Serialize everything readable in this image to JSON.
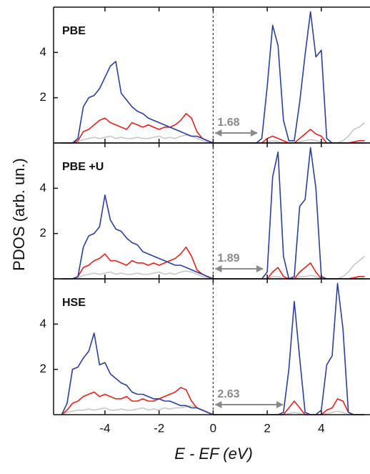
{
  "chart_data": [
    {
      "type": "line",
      "label": "PBE",
      "gap": 1.68,
      "ylabel": "PDOS (arb. un.)",
      "xlim": [
        -5.9,
        5.8
      ],
      "ylim": [
        0,
        6
      ],
      "yticks": [
        2,
        4
      ],
      "xticks": [
        -4,
        -2,
        0,
        2,
        4
      ],
      "x": [
        -5.6,
        -5.4,
        -5.2,
        -5.0,
        -4.8,
        -4.6,
        -4.4,
        -4.2,
        -4.0,
        -3.8,
        -3.6,
        -3.4,
        -3.2,
        -3.0,
        -2.8,
        -2.6,
        -2.4,
        -2.2,
        -2.0,
        -1.8,
        -1.6,
        -1.4,
        -1.2,
        -1.0,
        -0.8,
        -0.6,
        -0.4,
        -0.2,
        0,
        0.2,
        0.4,
        0.6,
        0.8,
        1.0,
        1.2,
        1.4,
        1.6,
        1.8,
        2.0,
        2.2,
        2.4,
        2.6,
        2.8,
        3.0,
        3.2,
        3.4,
        3.6,
        3.8,
        4.0,
        4.2,
        4.4,
        4.6,
        4.8,
        5.0,
        5.2,
        5.4,
        5.6
      ],
      "series": [
        {
          "color": "#c8c8c8",
          "values": [
            0,
            0,
            0,
            0.05,
            0.15,
            0.2,
            0.25,
            0.2,
            0.25,
            0.3,
            0.2,
            0.25,
            0.2,
            0.2,
            0.25,
            0.2,
            0.2,
            0.25,
            0.3,
            0.2,
            0.25,
            0.2,
            0.3,
            0.35,
            0.3,
            0.2,
            0.1,
            0.05,
            0,
            0,
            0,
            0,
            0,
            0,
            0,
            0,
            0,
            0,
            0.05,
            0.1,
            0.05,
            0,
            0,
            0,
            0.05,
            0.1,
            0.15,
            0.1,
            0.05,
            0,
            0,
            0,
            0.1,
            0.3,
            0.6,
            0.7,
            0.9
          ]
        },
        {
          "color": "#e3241e",
          "values": [
            0,
            0,
            0,
            0.1,
            0.5,
            0.6,
            0.8,
            1.0,
            1.1,
            0.9,
            0.8,
            0.7,
            0.6,
            0.9,
            0.8,
            0.7,
            0.8,
            0.7,
            0.6,
            0.7,
            0.7,
            0.8,
            1.0,
            1.3,
            1.1,
            0.5,
            0.2,
            0.1,
            0,
            0,
            0,
            0,
            0,
            0,
            0,
            0,
            0,
            0,
            0.2,
            0.3,
            0.2,
            0.1,
            0,
            0,
            0.2,
            0.4,
            0.6,
            0.4,
            0.3,
            0,
            0,
            0,
            0,
            0,
            0.05,
            0.1,
            0.1
          ]
        },
        {
          "color": "#2b3f9c",
          "values": [
            0,
            0,
            0,
            0.2,
            1.6,
            2.0,
            2.1,
            2.4,
            2.9,
            3.4,
            3.6,
            2.2,
            1.9,
            1.6,
            1.4,
            1.3,
            1.1,
            1.0,
            0.9,
            0.8,
            0.7,
            0.6,
            0.5,
            0.4,
            0.3,
            0.3,
            0.2,
            0.1,
            0,
            0,
            0,
            0,
            0,
            0,
            0,
            0,
            0,
            0.2,
            2.5,
            5.2,
            4.3,
            1.0,
            0.1,
            0.1,
            1.8,
            3.9,
            5.8,
            3.8,
            4.1,
            0.2,
            0,
            0,
            0,
            0,
            0,
            0,
            0
          ]
        }
      ]
    },
    {
      "type": "line",
      "label": "PBE +U",
      "gap": 1.89,
      "xlim": [
        -5.9,
        5.8
      ],
      "ylim": [
        0,
        6
      ],
      "yticks": [
        2,
        4
      ],
      "xticks": [
        -4,
        -2,
        0,
        2,
        4
      ],
      "x": [
        -5.6,
        -5.4,
        -5.2,
        -5.0,
        -4.8,
        -4.6,
        -4.4,
        -4.2,
        -4.0,
        -3.8,
        -3.6,
        -3.4,
        -3.2,
        -3.0,
        -2.8,
        -2.6,
        -2.4,
        -2.2,
        -2.0,
        -1.8,
        -1.6,
        -1.4,
        -1.2,
        -1.0,
        -0.8,
        -0.6,
        -0.4,
        -0.2,
        0,
        0.2,
        0.4,
        0.6,
        0.8,
        1.0,
        1.2,
        1.4,
        1.6,
        1.8,
        2.0,
        2.2,
        2.4,
        2.6,
        2.8,
        3.0,
        3.2,
        3.4,
        3.6,
        3.8,
        4.0,
        4.2,
        4.4,
        4.6,
        4.8,
        5.0,
        5.2,
        5.4,
        5.6
      ],
      "series": [
        {
          "color": "#c8c8c8",
          "values": [
            0,
            0,
            0,
            0.05,
            0.15,
            0.2,
            0.25,
            0.2,
            0.25,
            0.3,
            0.2,
            0.25,
            0.2,
            0.2,
            0.25,
            0.2,
            0.2,
            0.25,
            0.3,
            0.2,
            0.25,
            0.2,
            0.3,
            0.35,
            0.3,
            0.2,
            0.1,
            0.05,
            0,
            0,
            0,
            0,
            0,
            0,
            0,
            0,
            0,
            0,
            0,
            0.1,
            0.1,
            0,
            0,
            0,
            0.1,
            0.1,
            0.15,
            0.1,
            0,
            0,
            0,
            0,
            0.1,
            0.3,
            0.6,
            0.8,
            1.0
          ]
        },
        {
          "color": "#e3241e",
          "values": [
            0,
            0,
            0,
            0.1,
            0.5,
            0.6,
            0.8,
            0.9,
            1.1,
            0.8,
            0.8,
            0.7,
            0.6,
            0.8,
            0.7,
            0.7,
            0.6,
            0.7,
            0.6,
            0.7,
            0.8,
            0.9,
            1.1,
            1.4,
            1.0,
            0.4,
            0.2,
            0.1,
            0,
            0,
            0,
            0,
            0,
            0,
            0,
            0,
            0,
            0,
            0,
            0.3,
            0.5,
            0.1,
            0,
            0,
            0.3,
            0.5,
            0.7,
            0.3,
            0,
            0,
            0,
            0,
            0,
            0,
            0.05,
            0.1,
            0.1
          ]
        },
        {
          "color": "#2b3f9c",
          "values": [
            0,
            0,
            0,
            0.1,
            1.4,
            1.9,
            2.0,
            2.3,
            3.7,
            2.6,
            2.2,
            2.1,
            1.8,
            1.6,
            1.5,
            1.2,
            1.1,
            1.0,
            0.9,
            0.8,
            0.7,
            0.6,
            0.6,
            0.5,
            0.4,
            0.3,
            0.2,
            0.1,
            0,
            0,
            0,
            0,
            0,
            0,
            0,
            0,
            0,
            0,
            0.3,
            4.5,
            5.6,
            1.0,
            0,
            0.1,
            3.2,
            3.5,
            5.8,
            4.0,
            0.1,
            0,
            0,
            0,
            0,
            0,
            0,
            0,
            0
          ]
        }
      ]
    },
    {
      "type": "line",
      "label": "HSE",
      "gap": 2.63,
      "xlabel": "E - EF (eV)",
      "xlim": [
        -5.9,
        5.8
      ],
      "ylim": [
        0,
        6
      ],
      "yticks": [
        2,
        4
      ],
      "xticks": [
        -4,
        -2,
        0,
        2,
        4
      ],
      "x": [
        -5.6,
        -5.4,
        -5.2,
        -5.0,
        -4.8,
        -4.6,
        -4.4,
        -4.2,
        -4.0,
        -3.8,
        -3.6,
        -3.4,
        -3.2,
        -3.0,
        -2.8,
        -2.6,
        -2.4,
        -2.2,
        -2.0,
        -1.8,
        -1.6,
        -1.4,
        -1.2,
        -1.0,
        -0.8,
        -0.6,
        -0.4,
        -0.2,
        0,
        0.2,
        0.4,
        0.6,
        0.8,
        1.0,
        1.2,
        1.4,
        1.6,
        1.8,
        2.0,
        2.2,
        2.4,
        2.6,
        2.8,
        3.0,
        3.2,
        3.4,
        3.6,
        3.8,
        4.0,
        4.2,
        4.4,
        4.6,
        4.8,
        5.0,
        5.2,
        5.4,
        5.6
      ],
      "series": [
        {
          "color": "#c8c8c8",
          "values": [
            0,
            0.1,
            0.15,
            0.2,
            0.2,
            0.25,
            0.2,
            0.25,
            0.3,
            0.2,
            0.2,
            0.25,
            0.2,
            0.2,
            0.25,
            0.3,
            0.2,
            0.25,
            0.2,
            0.3,
            0.25,
            0.3,
            0.3,
            0.35,
            0.4,
            0.3,
            0.2,
            0.1,
            0,
            0,
            0,
            0,
            0,
            0,
            0,
            0,
            0,
            0,
            0,
            0,
            0,
            0,
            0.05,
            0.1,
            0.05,
            0,
            0,
            0,
            0,
            0.05,
            0.1,
            0.15,
            0.1,
            0,
            0,
            0,
            0
          ]
        },
        {
          "color": "#e3241e",
          "values": [
            0,
            0.2,
            0.5,
            0.6,
            0.8,
            0.9,
            1.0,
            0.8,
            0.9,
            0.8,
            0.7,
            0.7,
            0.8,
            0.6,
            0.6,
            0.7,
            0.6,
            0.6,
            0.7,
            0.8,
            0.9,
            1.0,
            1.2,
            1.1,
            0.6,
            0.3,
            0.2,
            0.1,
            0,
            0,
            0,
            0,
            0,
            0,
            0,
            0,
            0,
            0,
            0,
            0,
            0,
            0,
            0.3,
            0.6,
            0.3,
            0,
            0,
            0,
            0,
            0.2,
            0.3,
            0.7,
            0.6,
            0.1,
            0,
            0,
            0
          ]
        },
        {
          "color": "#2b3f9c",
          "values": [
            0,
            0.5,
            2.0,
            2.1,
            2.5,
            2.8,
            3.6,
            2.2,
            2.3,
            1.8,
            1.6,
            1.4,
            1.3,
            1.0,
            0.9,
            0.9,
            0.8,
            0.7,
            0.7,
            0.6,
            0.6,
            0.5,
            0.4,
            0.4,
            0.3,
            0.3,
            0.2,
            0.1,
            0,
            0,
            0,
            0,
            0,
            0,
            0,
            0,
            0,
            0,
            0,
            0,
            0,
            0.1,
            2.0,
            5.0,
            2.5,
            0.1,
            0,
            0,
            0.2,
            2.2,
            2.6,
            5.8,
            3.8,
            0.1,
            0,
            0,
            0
          ]
        }
      ]
    }
  ]
}
